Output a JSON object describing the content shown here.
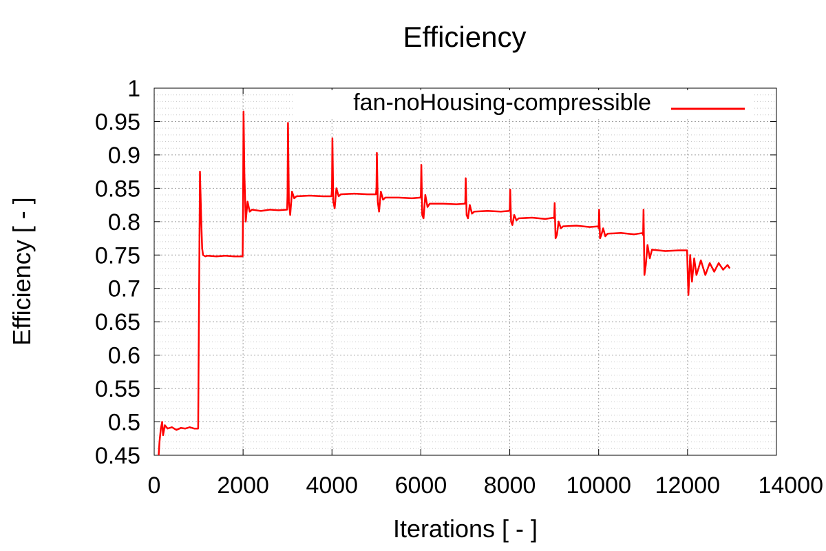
{
  "chart_data": {
    "type": "line",
    "title": "Efficiency",
    "xlabel": "Iterations [ - ]",
    "ylabel": "Efficiency [ - ]",
    "xlim": [
      0,
      14000
    ],
    "ylim": [
      0.45,
      1
    ],
    "xticks": [
      0,
      2000,
      4000,
      6000,
      8000,
      10000,
      12000,
      14000
    ],
    "xtick_labels": [
      "0",
      "2000",
      "4000",
      "6000",
      "8000",
      "10000",
      "12000",
      "14000"
    ],
    "yticks": [
      0.45,
      0.5,
      0.55,
      0.6,
      0.65,
      0.7,
      0.75,
      0.8,
      0.85,
      0.9,
      0.95,
      1
    ],
    "ytick_labels": [
      "0.45",
      "0.5",
      "0.55",
      "0.6",
      "0.65",
      "0.7",
      "0.75",
      "0.8",
      "0.85",
      "0.9",
      "0.95",
      "1"
    ],
    "grid": true,
    "legend_position": "top-right",
    "series": [
      {
        "name": "fan-noHousing-compressible",
        "color": "#ff0000",
        "x": [
          100,
          120,
          150,
          180,
          200,
          240,
          300,
          400,
          500,
          600,
          700,
          800,
          900,
          990,
          1000,
          1030,
          1060,
          1080,
          1100,
          1150,
          1200,
          1400,
          1600,
          1800,
          1990,
          2000,
          2010,
          2030,
          2060,
          2100,
          2150,
          2200,
          2400,
          2600,
          2800,
          2990,
          3000,
          3010,
          3030,
          3060,
          3100,
          3150,
          3200,
          3500,
          3800,
          3990,
          4000,
          4010,
          4030,
          4060,
          4100,
          4150,
          4200,
          4500,
          4800,
          4990,
          5000,
          5010,
          5030,
          5060,
          5100,
          5150,
          5200,
          5500,
          5800,
          5990,
          6000,
          6010,
          6030,
          6060,
          6100,
          6150,
          6200,
          6500,
          6800,
          6990,
          7000,
          7010,
          7030,
          7060,
          7100,
          7150,
          7200,
          7500,
          7800,
          7990,
          8000,
          8010,
          8030,
          8060,
          8100,
          8150,
          8200,
          8500,
          8800,
          8990,
          9000,
          9010,
          9030,
          9060,
          9100,
          9150,
          9200,
          9500,
          9800,
          9990,
          10000,
          10010,
          10030,
          10060,
          10100,
          10150,
          10200,
          10500,
          10800,
          10990,
          11000,
          11010,
          11030,
          11060,
          11100,
          11150,
          11200,
          11500,
          11800,
          11990,
          12000,
          12020,
          12060,
          12100,
          12150,
          12200,
          12300,
          12400,
          12500,
          12600,
          12700,
          12800,
          12900,
          12950
        ],
        "y": [
          0.45,
          0.47,
          0.49,
          0.5,
          0.48,
          0.495,
          0.49,
          0.492,
          0.488,
          0.491,
          0.49,
          0.492,
          0.49,
          0.49,
          0.6,
          0.875,
          0.8,
          0.76,
          0.75,
          0.748,
          0.749,
          0.748,
          0.749,
          0.748,
          0.748,
          0.82,
          0.965,
          0.87,
          0.8,
          0.83,
          0.815,
          0.818,
          0.816,
          0.818,
          0.817,
          0.818,
          0.84,
          0.948,
          0.83,
          0.81,
          0.845,
          0.835,
          0.838,
          0.839,
          0.838,
          0.838,
          0.85,
          0.925,
          0.83,
          0.82,
          0.85,
          0.838,
          0.841,
          0.842,
          0.841,
          0.841,
          0.85,
          0.903,
          0.83,
          0.815,
          0.845,
          0.833,
          0.836,
          0.836,
          0.835,
          0.836,
          0.84,
          0.885,
          0.81,
          0.805,
          0.84,
          0.822,
          0.827,
          0.827,
          0.826,
          0.827,
          0.83,
          0.865,
          0.81,
          0.805,
          0.825,
          0.812,
          0.815,
          0.816,
          0.815,
          0.816,
          0.82,
          0.848,
          0.8,
          0.795,
          0.81,
          0.802,
          0.805,
          0.806,
          0.804,
          0.806,
          0.805,
          0.828,
          0.775,
          0.78,
          0.8,
          0.79,
          0.793,
          0.794,
          0.792,
          0.793,
          0.79,
          0.818,
          0.775,
          0.78,
          0.79,
          0.778,
          0.782,
          0.783,
          0.781,
          0.783,
          0.78,
          0.818,
          0.72,
          0.735,
          0.765,
          0.745,
          0.758,
          0.756,
          0.757,
          0.757,
          0.73,
          0.69,
          0.75,
          0.71,
          0.745,
          0.72,
          0.742,
          0.72,
          0.738,
          0.725,
          0.738,
          0.728,
          0.735,
          0.73
        ]
      }
    ]
  }
}
